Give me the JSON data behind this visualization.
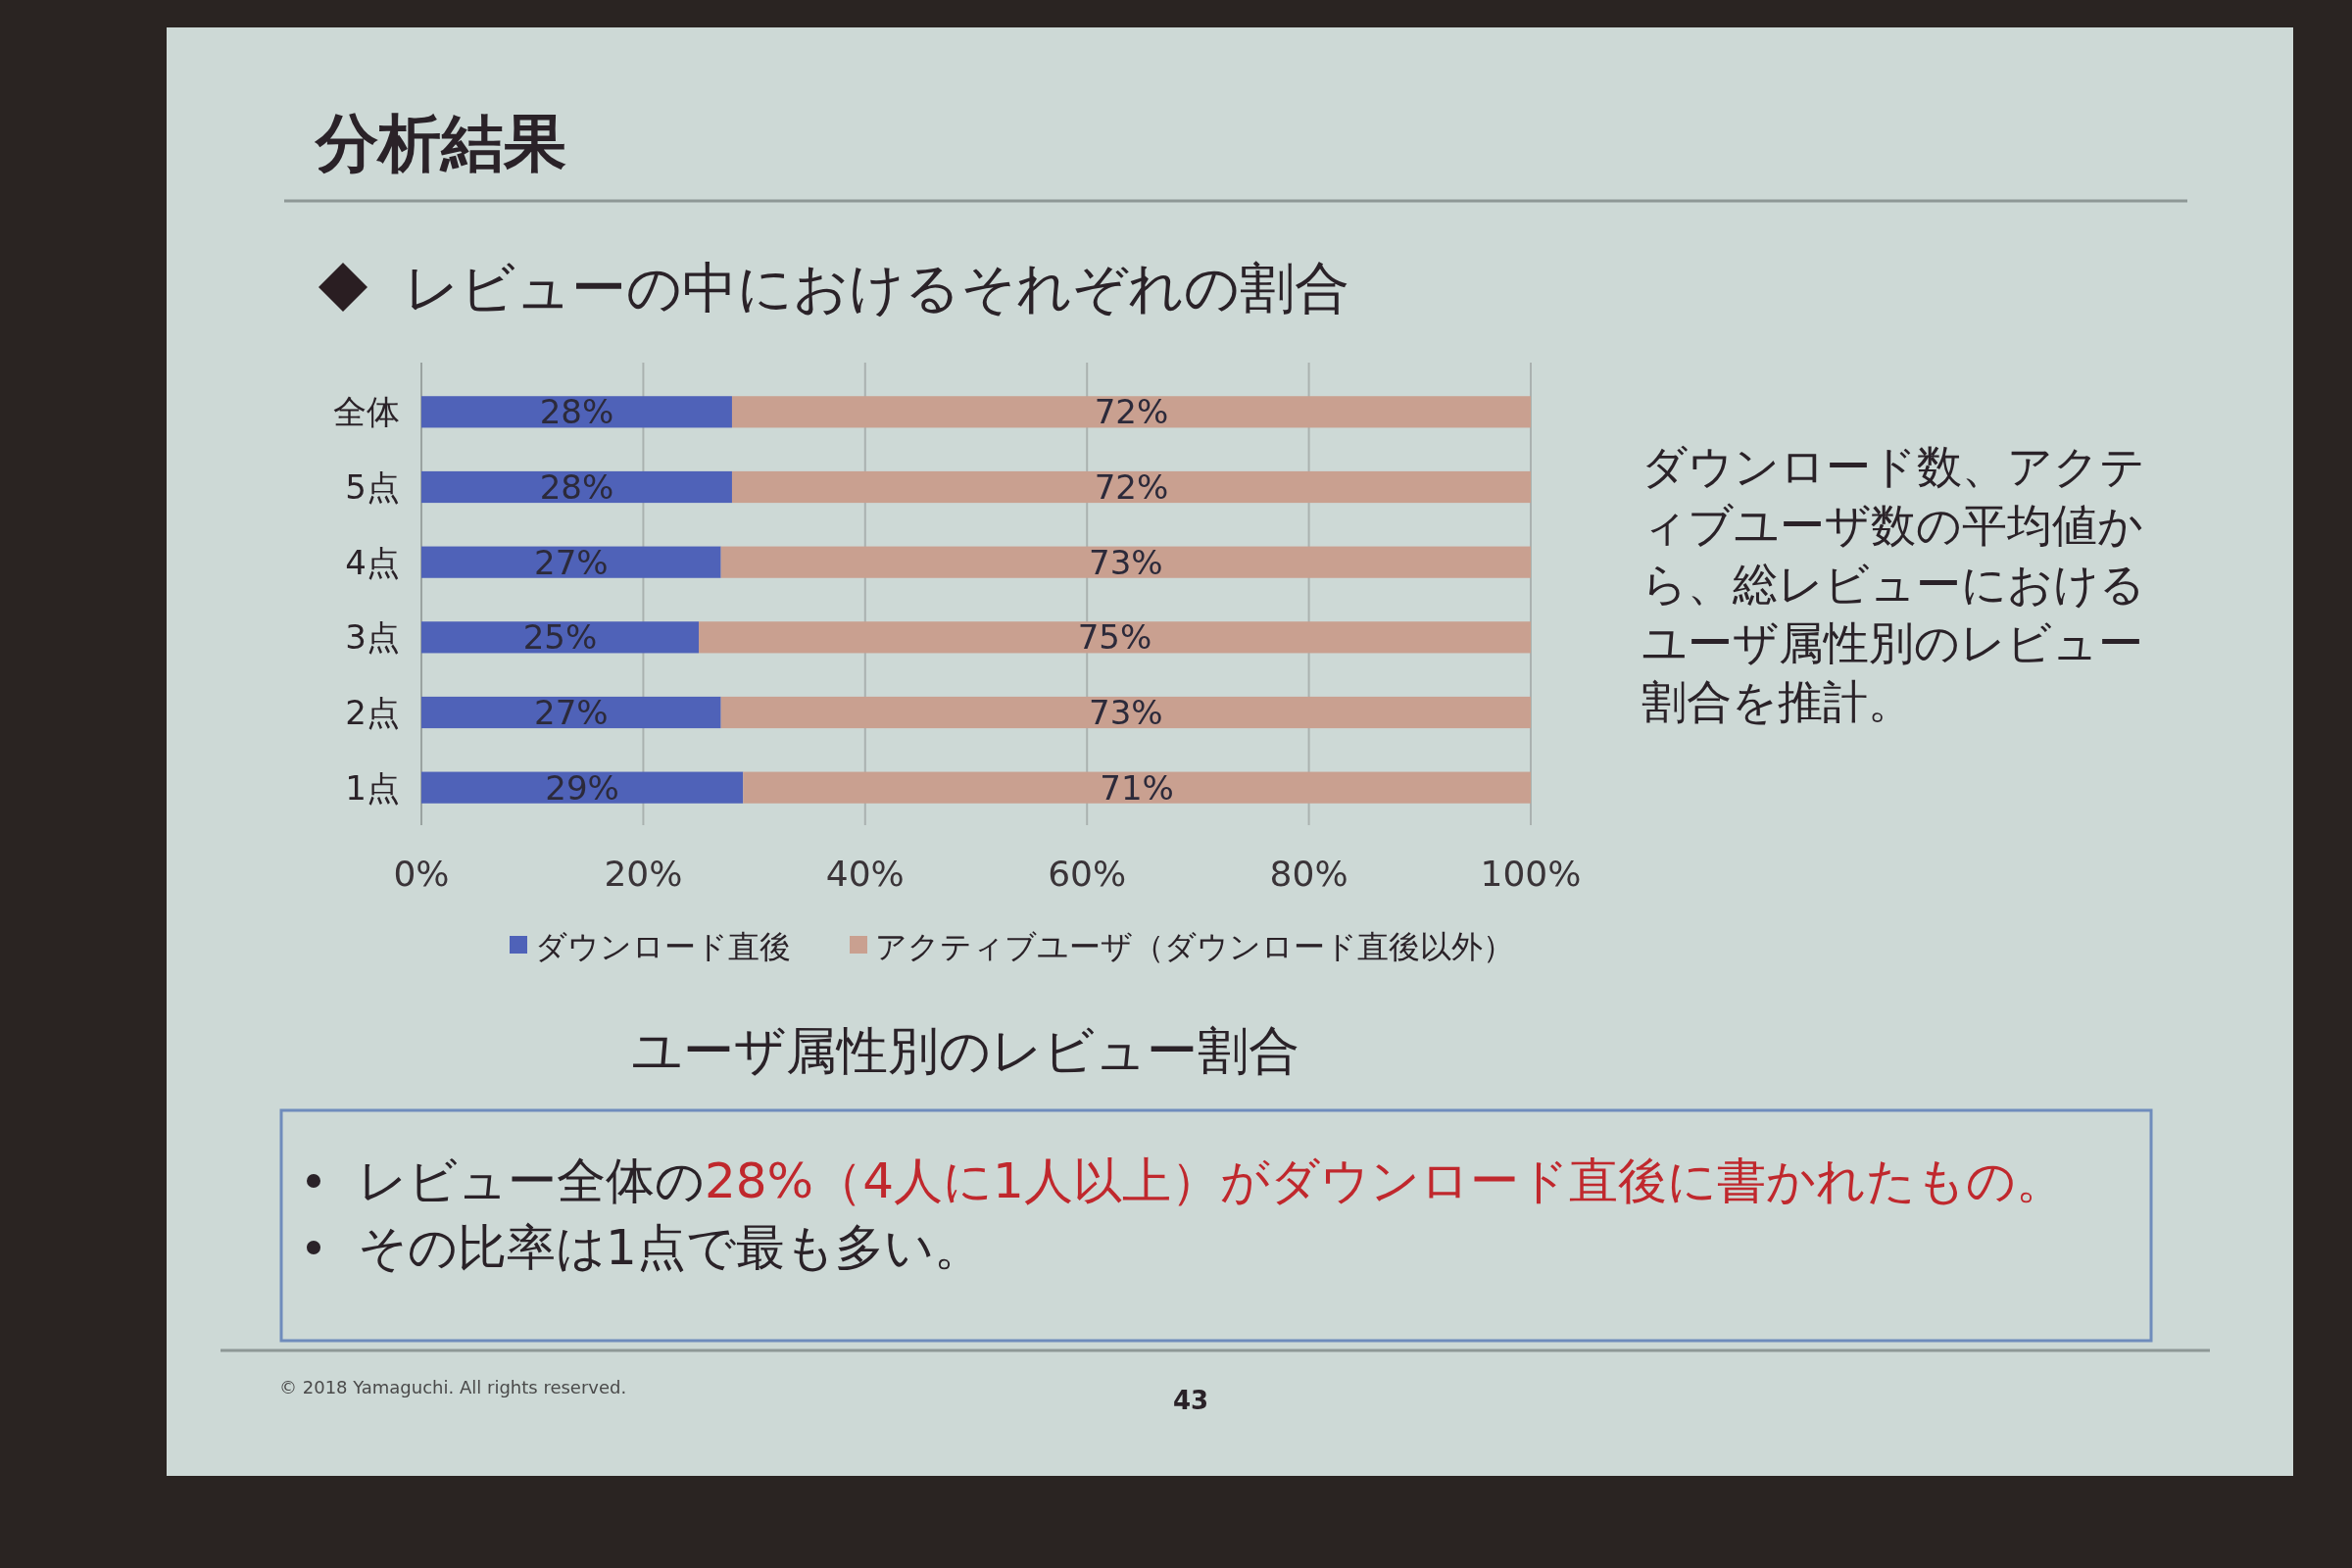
{
  "chart_data": {
    "type": "bar",
    "orientation": "horizontal",
    "stacked": true,
    "title": "分析結果",
    "subtitle": "レビューの中におけるそれぞれの割合",
    "categories": [
      "全体",
      "5点",
      "4点",
      "3点",
      "2点",
      "1点"
    ],
    "series": [
      {
        "name": "ダウンロード直後",
        "color": "#4f62b8",
        "values": [
          28,
          28,
          27,
          25,
          27,
          29
        ],
        "value_labels": [
          "28%",
          "28%",
          "27%",
          "25%",
          "27%",
          "29%"
        ]
      },
      {
        "name": "アクティブユーザ（ダウンロード直後以外）",
        "color": "#c9a090",
        "values": [
          72,
          72,
          73,
          75,
          73,
          71
        ],
        "value_labels": [
          "72%",
          "72%",
          "73%",
          "75%",
          "73%",
          "71%"
        ]
      }
    ],
    "xlim": [
      0,
      100
    ],
    "xticks": [
      {
        "value": 0,
        "label": "0%"
      },
      {
        "value": 20,
        "label": "20%"
      },
      {
        "value": 40,
        "label": "40%"
      },
      {
        "value": 60,
        "label": "60%"
      },
      {
        "value": 80,
        "label": "80%"
      },
      {
        "value": 100,
        "label": "100%"
      }
    ],
    "grid": "x",
    "legend": "bottom",
    "annotations": [
      "ユーザ属性別のレビュー割合",
      "ダウンロード数、アクティブユーザ数の平均値から、総レビューにおけるユーザ属性別のレビュー割合を推計。",
      "レビュー全体の**28%（4人に1人以上）がダウンロード直後に書かれたもの。**",
      "その比率は1点で最も多い。",
      "© 2018 Yamaguchi. All rights reserved.",
      "43"
    ]
  }
}
